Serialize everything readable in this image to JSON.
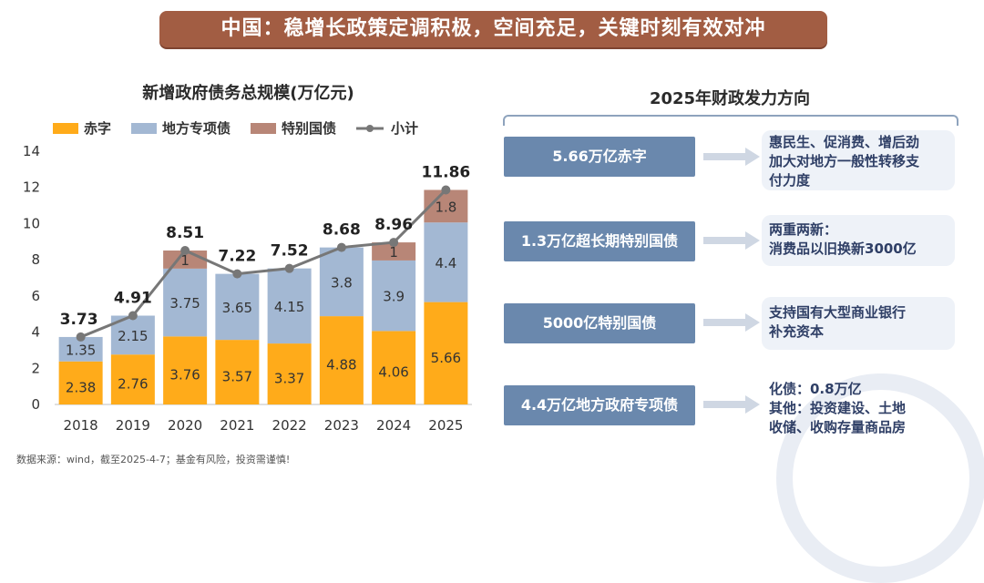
{
  "banner": "中国：稳增长政策定调积极，空间充足，关键时刻有效对冲",
  "chart_data": {
    "type": "bar",
    "title": "新增政府债务总规模(万亿元)",
    "categories": [
      "2018",
      "2019",
      "2020",
      "2021",
      "2022",
      "2023",
      "2024",
      "2025"
    ],
    "ylim": [
      0,
      14
    ],
    "yticks": [
      0,
      2,
      4,
      6,
      8,
      10,
      12,
      14
    ],
    "series": [
      {
        "name": "赤字",
        "color": "#ffab1a",
        "values": [
          2.38,
          2.76,
          3.76,
          3.57,
          3.37,
          4.88,
          4.06,
          5.66
        ]
      },
      {
        "name": "地方专项债",
        "color": "#a3b8d3",
        "values": [
          1.35,
          2.15,
          3.75,
          3.65,
          4.15,
          3.8,
          3.9,
          4.4
        ]
      },
      {
        "name": "特别国债",
        "color": "#b88677",
        "values": [
          null,
          null,
          1,
          null,
          null,
          null,
          1,
          1.8
        ]
      }
    ],
    "line": {
      "name": "小计",
      "color": "#777777",
      "values": [
        3.73,
        4.91,
        8.51,
        7.22,
        7.52,
        8.68,
        8.96,
        11.86
      ]
    },
    "segment_labels": [
      [
        "2.38",
        "1.35",
        ""
      ],
      [
        "2.76",
        "2.15",
        ""
      ],
      [
        "3.76",
        "3.75",
        "1"
      ],
      [
        "3.57",
        "3.65",
        ""
      ],
      [
        "3.37",
        "4.15",
        ""
      ],
      [
        "4.88",
        "3.8",
        ""
      ],
      [
        "4.06",
        "3.9",
        "1"
      ],
      [
        "5.66",
        "4.4",
        "1.8"
      ]
    ],
    "total_labels": [
      "3.73",
      "4.91",
      "8.51",
      "7.22",
      "7.52",
      "8.68",
      "8.96",
      "11.86"
    ],
    "legend_position": "top"
  },
  "right": {
    "title": "2025年财政发力方向",
    "items": [
      {
        "label": "5.66万亿赤字",
        "desc": [
          "惠民生、促消费、增后劲",
          "加大对地方一般性转移支",
          "付力度"
        ]
      },
      {
        "label": "1.3万亿超长期特别国债",
        "desc": [
          "两重两新：",
          "消费品以旧换新3000亿"
        ]
      },
      {
        "label": "5000亿特别国债",
        "desc": [
          "支持国有大型商业银行",
          "补充资本"
        ]
      },
      {
        "label": "4.4万亿地方政府专项债",
        "desc": [
          "化债：0.8万亿",
          "其他：投资建设、土地",
          "收储、收购存量商品房"
        ]
      }
    ]
  },
  "source": "数据来源：wind，截至2025-4-7；基金有风险，投资需谨慎!"
}
